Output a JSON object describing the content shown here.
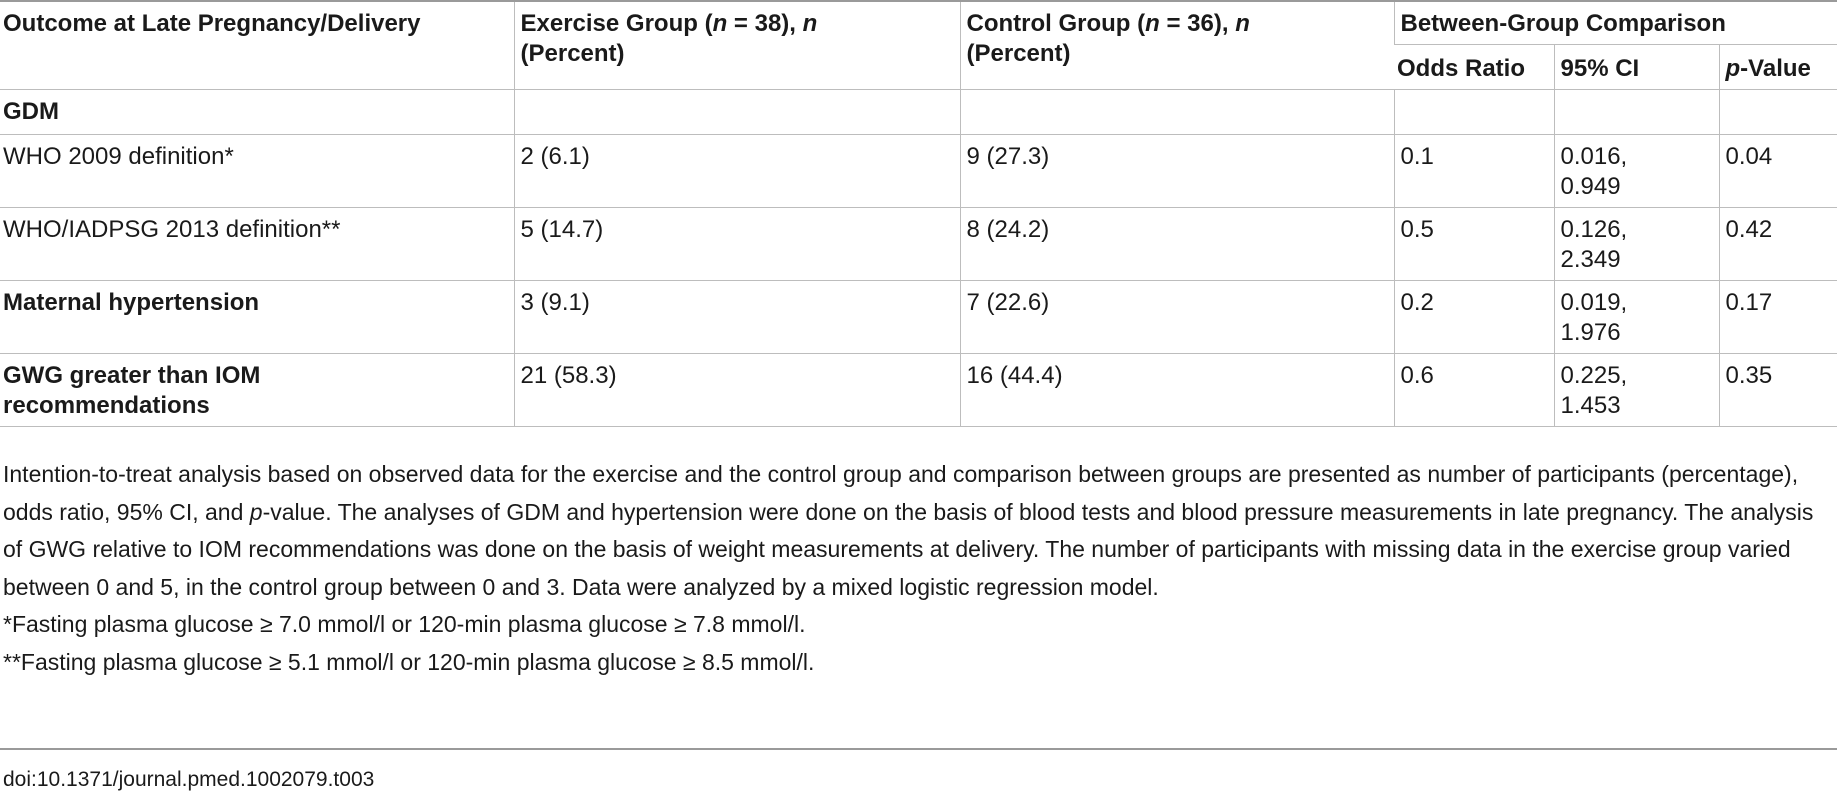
{
  "table": {
    "header": {
      "outcome": "Outcome at Late Pregnancy/Delivery",
      "exercise_prefix": "Exercise Group (",
      "exercise_n": "n",
      "exercise_mid": " = 38), ",
      "exercise_n2": "n",
      "exercise_suffix": "(Percent)",
      "control_prefix": "Control Group (",
      "control_n": "n",
      "control_mid": " = 36), ",
      "control_n2": "n",
      "control_suffix": "(Percent)",
      "between": "Between-Group Comparison",
      "odds_ratio": "Odds Ratio",
      "ci": "95% CI",
      "p_italic": "p",
      "p_rest": "-Value"
    },
    "rows": [
      {
        "label": "GDM",
        "exercise": "",
        "control": "",
        "or": "",
        "ci_low": "",
        "ci_high": "",
        "p": ""
      },
      {
        "label": "WHO 2009 definition*",
        "exercise": "2 (6.1)",
        "control": "9 (27.3)",
        "or": "0.1",
        "ci_low": "0.016,",
        "ci_high": "0.949",
        "p": "0.04"
      },
      {
        "label": "WHO/IADPSG 2013 definition**",
        "exercise": "5 (14.7)",
        "control": "8 (24.2)",
        "or": "0.5",
        "ci_low": "0.126,",
        "ci_high": "2.349",
        "p": "0.42"
      },
      {
        "label": "Maternal hypertension",
        "exercise": "3 (9.1)",
        "control": "7 (22.6)",
        "or": "0.2",
        "ci_low": "0.019,",
        "ci_high": "1.976",
        "p": "0.17"
      },
      {
        "label_line1": "GWG greater than IOM",
        "label_line2": "recommendations",
        "exercise": "21 (58.3)",
        "control": "16 (44.4)",
        "or": "0.6",
        "ci_low": "0.225,",
        "ci_high": "1.453",
        "p": "0.35"
      }
    ]
  },
  "footnotes": {
    "main_a": "Intention-to-treat analysis based on observed data for the exercise and the control group and comparison between groups are presented as number of participants (percentage), odds ratio, 95% CI, and ",
    "main_p": "p",
    "main_b": "-value. The analyses of GDM and hypertension were done on the basis of blood tests and blood pressure measurements in late pregnancy. The analysis of GWG relative to IOM recommendations was done on the basis of weight measurements at delivery. The number of participants with missing data in the exercise group varied between 0 and 5, in the control group between 0 and 3. Data were analyzed by a mixed logistic regression model.",
    "note1": "*Fasting plasma glucose ≥ 7.0 mmol/l or 120-min plasma glucose ≥ 7.8 mmol/l.",
    "note2": "**Fasting plasma glucose ≥ 5.1 mmol/l or 120-min plasma glucose ≥ 8.5 mmol/l."
  },
  "doi": "doi:10.1371/journal.pmed.1002079.t003"
}
